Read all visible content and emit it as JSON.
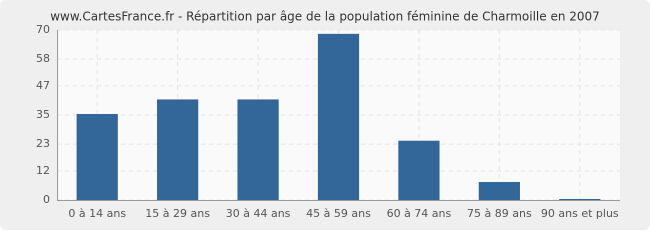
{
  "chart_data": {
    "type": "bar",
    "title": "www.CartesFrance.fr - Répartition par âge de la population féminine de Charmoille en 2007",
    "categories": [
      "0 à 14 ans",
      "15 à 29 ans",
      "30 à 44 ans",
      "45 à 59 ans",
      "60 à 74 ans",
      "75 à 89 ans",
      "90 ans et plus"
    ],
    "values": [
      35,
      41,
      41,
      68,
      24,
      7,
      0
    ],
    "color": "#336699",
    "ylim": [
      0,
      70
    ],
    "yticks": [
      0,
      12,
      23,
      35,
      47,
      58,
      70
    ],
    "grid": true
  }
}
